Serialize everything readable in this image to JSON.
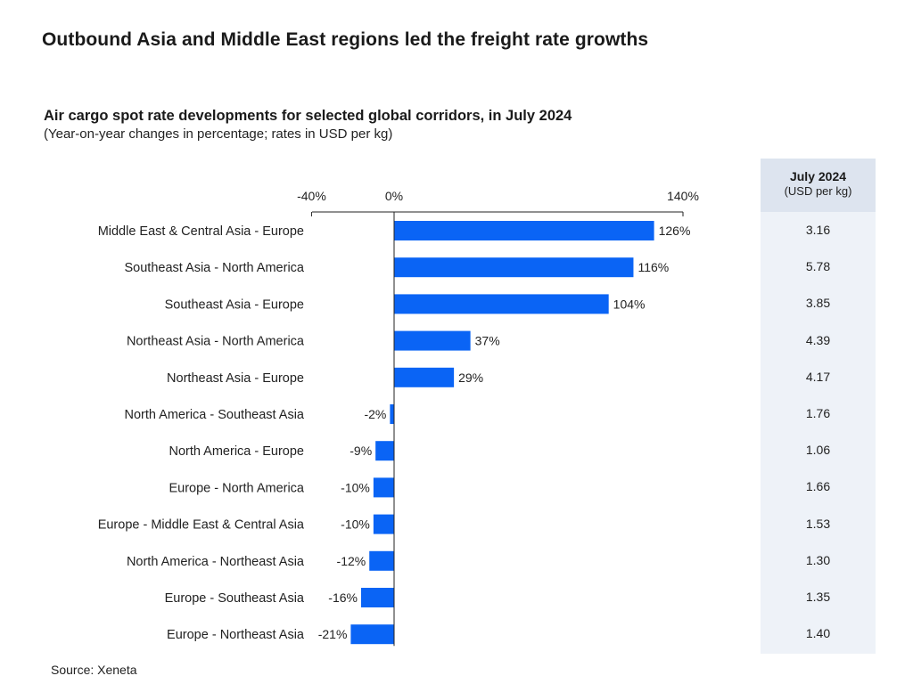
{
  "headline": "Outbound Asia and Middle East regions led the freight rate growths",
  "subtitle": "Air cargo spot rate developments for selected global corridors, in July 2024",
  "subnote": "(Year-on-year changes in percentage; rates in USD per kg)",
  "source": "Source: Xeneta",
  "table": {
    "title": "July 2024",
    "unit": "(USD per kg)",
    "rates": [
      "3.16",
      "5.78",
      "3.85",
      "4.39",
      "4.17",
      "1.76",
      "1.06",
      "1.66",
      "1.53",
      "1.30",
      "1.35",
      "1.40"
    ]
  },
  "colors": {
    "bar": "#0a64f5",
    "axis": "#222222",
    "panel": "#eef2f8",
    "panel_header": "#dde4ef"
  },
  "chart_data": {
    "type": "bar",
    "orientation": "horizontal",
    "title": "Air cargo spot rate developments for selected global corridors, in July 2024",
    "xlabel": "",
    "ylabel": "",
    "xlim": [
      -40,
      140
    ],
    "ticks": [
      -40,
      0,
      140
    ],
    "tick_labels": [
      "-40%",
      "0%",
      "140%"
    ],
    "categories": [
      "Middle East & Central Asia - Europe",
      "Southeast Asia - North America",
      "Southeast Asia - Europe",
      "Northeast Asia - North America",
      "Northeast Asia - Europe",
      "North America - Southeast Asia",
      "North America - Europe",
      "Europe - North America",
      "Europe - Middle East & Central Asia",
      "North America - Northeast Asia",
      "Europe - Southeast Asia",
      "Europe - Northeast Asia"
    ],
    "values": [
      126,
      116,
      104,
      37,
      29,
      -2,
      -9,
      -10,
      -10,
      -12,
      -16,
      -21
    ],
    "value_labels": [
      "126%",
      "116%",
      "104%",
      "37%",
      "29%",
      "-2%",
      "-9%",
      "-10%",
      "-10%",
      "-12%",
      "-16%",
      "-21%"
    ],
    "grid": false,
    "legend": "none"
  }
}
